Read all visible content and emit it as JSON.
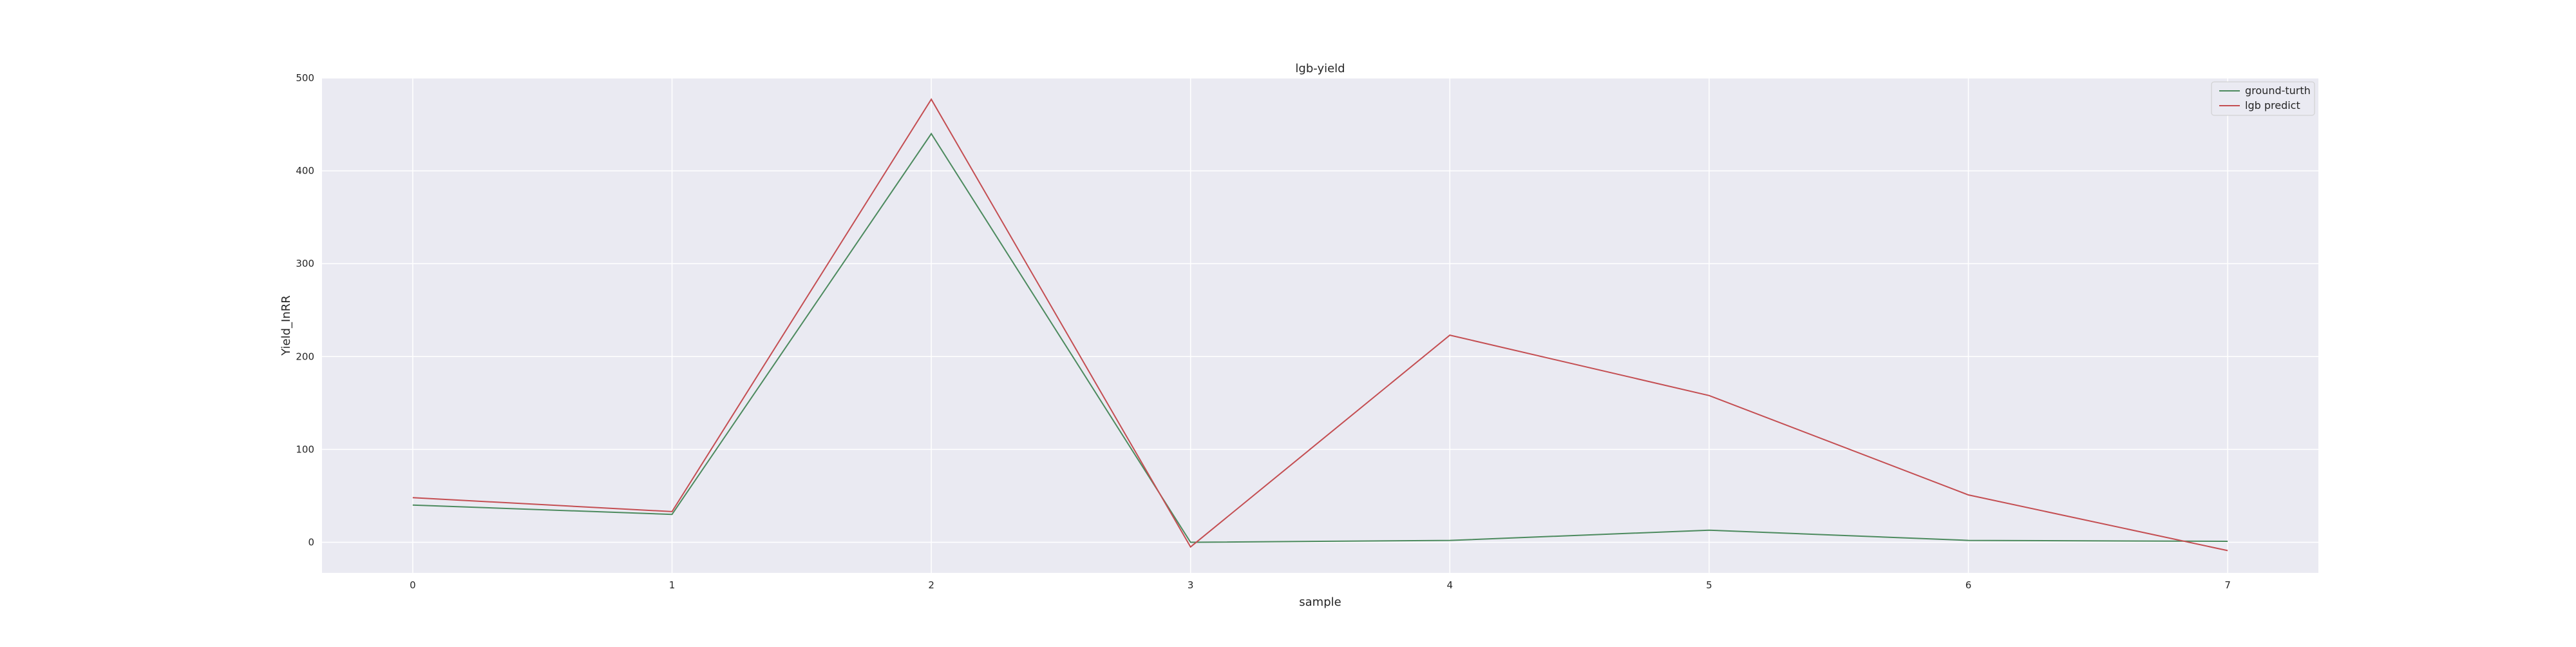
{
  "chart_data": {
    "type": "line",
    "title": "lgb-yield",
    "xlabel": "sample",
    "ylabel": "Yield_InRR",
    "x": [
      0,
      1,
      2,
      3,
      4,
      5,
      6,
      7
    ],
    "xlim": [
      -0.35,
      7.35
    ],
    "ylim": [
      -33,
      500
    ],
    "xticks": [
      0,
      1,
      2,
      3,
      4,
      5,
      6,
      7
    ],
    "yticks": [
      0,
      100,
      200,
      300,
      400,
      500
    ],
    "grid": true,
    "legend_position": "top-right",
    "background": "#eaeaf2",
    "series": [
      {
        "name": "ground-turth",
        "color": "#4c8a5e",
        "values": [
          40,
          30,
          440,
          0,
          2,
          13,
          2,
          1
        ]
      },
      {
        "name": "lgb predict",
        "color": "#c44e52",
        "values": [
          48,
          33,
          477,
          -5,
          223,
          158,
          51,
          -9
        ]
      }
    ]
  }
}
